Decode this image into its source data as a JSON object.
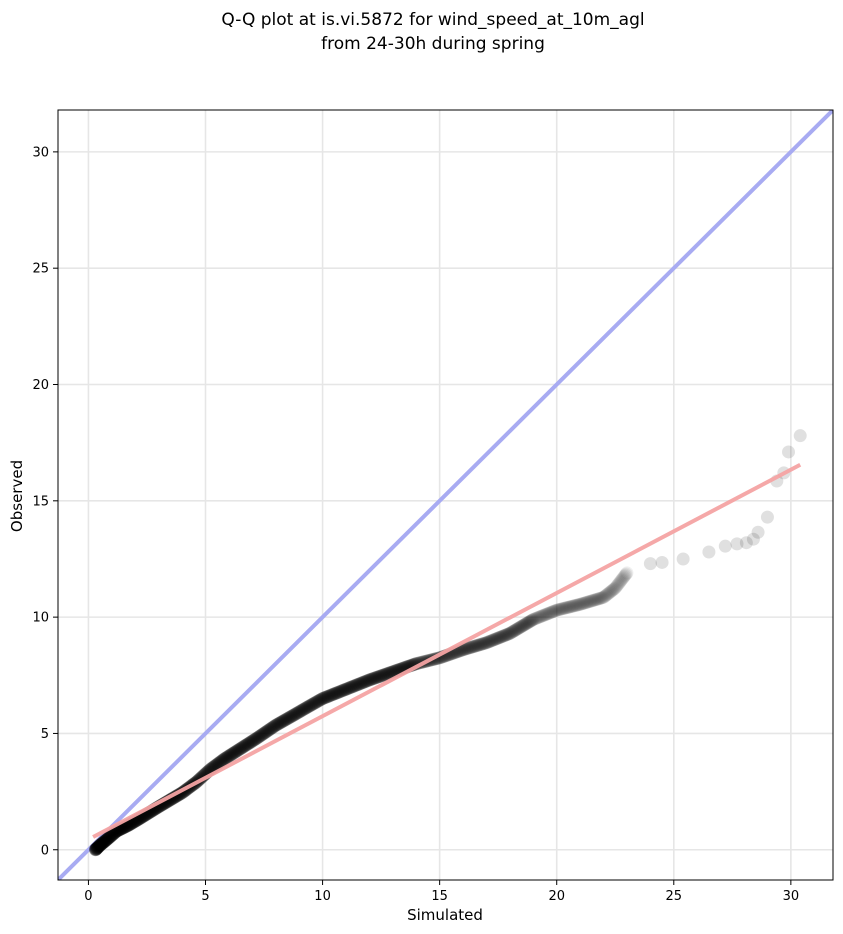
{
  "chart_data": {
    "type": "scatter",
    "title": "Q-Q plot at is.vi.5872 for wind_speed_at_10m_agl",
    "subtitle": "from 24-30h during spring",
    "xlabel": "Simulated",
    "ylabel": "Observed",
    "xlim": [
      -1.3,
      31.8
    ],
    "ylim": [
      -1.3,
      31.8
    ],
    "xticks": [
      0,
      5,
      10,
      15,
      20,
      25,
      30
    ],
    "yticks": [
      0,
      5,
      10,
      15,
      20,
      25,
      30
    ],
    "grid": true,
    "reference_line": {
      "slope": 1,
      "intercept": 0,
      "color": "#a8abf2"
    },
    "fit_line": {
      "x": [
        0.2,
        30.4
      ],
      "y": [
        0.55,
        16.55
      ],
      "color": "#f4a3a3"
    },
    "points_color": "#000000",
    "quantiles_curve": [
      [
        0.3,
        0.0
      ],
      [
        0.5,
        0.2
      ],
      [
        0.8,
        0.45
      ],
      [
        1.2,
        0.8
      ],
      [
        1.7,
        1.05
      ],
      [
        2.2,
        1.35
      ],
      [
        2.6,
        1.6
      ],
      [
        3.0,
        1.85
      ],
      [
        3.5,
        2.15
      ],
      [
        4.0,
        2.45
      ],
      [
        4.6,
        2.9
      ],
      [
        5.2,
        3.45
      ],
      [
        5.8,
        3.9
      ],
      [
        6.5,
        4.35
      ],
      [
        7.2,
        4.8
      ],
      [
        8.0,
        5.35
      ],
      [
        8.7,
        5.75
      ],
      [
        9.3,
        6.1
      ],
      [
        10.0,
        6.5
      ],
      [
        11.0,
        6.9
      ],
      [
        12.0,
        7.3
      ],
      [
        13.0,
        7.65
      ],
      [
        14.0,
        8.0
      ],
      [
        15.0,
        8.25
      ],
      [
        16.0,
        8.6
      ],
      [
        17.0,
        8.9
      ],
      [
        18.0,
        9.3
      ],
      [
        19.0,
        9.9
      ],
      [
        20.0,
        10.3
      ],
      [
        21.0,
        10.55
      ],
      [
        22.0,
        10.85
      ],
      [
        22.5,
        11.25
      ],
      [
        23.0,
        11.9
      ]
    ],
    "tail_points": [
      [
        24.0,
        12.3
      ],
      [
        24.5,
        12.35
      ],
      [
        25.4,
        12.5
      ],
      [
        26.5,
        12.8
      ],
      [
        27.2,
        13.05
      ],
      [
        27.7,
        13.15
      ],
      [
        28.1,
        13.2
      ],
      [
        28.4,
        13.35
      ],
      [
        28.6,
        13.65
      ],
      [
        29.0,
        14.3
      ],
      [
        29.4,
        15.85
      ],
      [
        29.7,
        16.2
      ],
      [
        29.9,
        17.1
      ],
      [
        30.4,
        17.8
      ]
    ]
  }
}
